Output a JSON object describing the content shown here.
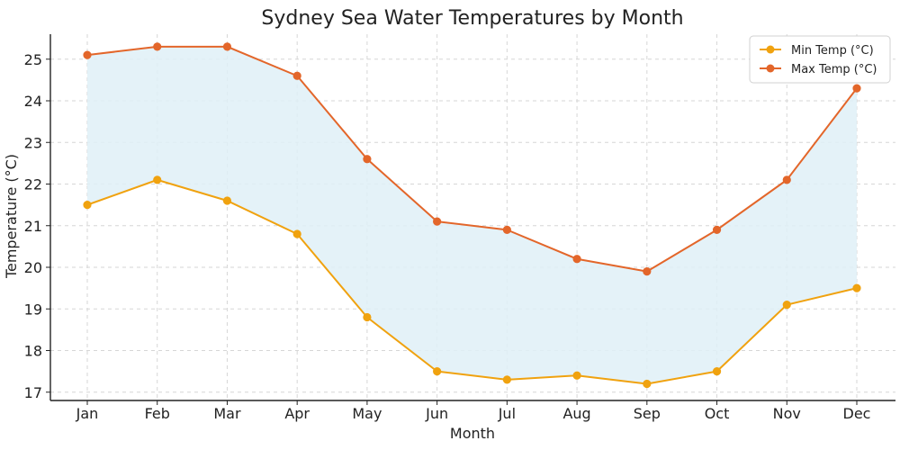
{
  "chart_data": {
    "type": "line",
    "title": "Sydney Sea Water Temperatures by Month",
    "xlabel": "Month",
    "ylabel": "Temperature (°C)",
    "categories": [
      "Jan",
      "Feb",
      "Mar",
      "Apr",
      "May",
      "Jun",
      "Jul",
      "Aug",
      "Sep",
      "Oct",
      "Nov",
      "Dec"
    ],
    "series": [
      {
        "name": "Min Temp (°C)",
        "color": "#f0a20f",
        "values": [
          21.5,
          22.1,
          21.6,
          20.8,
          18.8,
          17.5,
          17.3,
          17.4,
          17.2,
          17.5,
          19.1,
          19.5
        ]
      },
      {
        "name": "Max Temp (°C)",
        "color": "#e3662a",
        "values": [
          25.1,
          25.3,
          25.3,
          24.6,
          22.6,
          21.1,
          20.9,
          20.2,
          19.9,
          20.9,
          22.1,
          24.3
        ]
      }
    ],
    "fill_between": {
      "lower_series": "Min Temp (°C)",
      "upper_series": "Max Temp (°C)",
      "color": "#dff0f7"
    },
    "ylim": [
      16.8,
      25.6
    ],
    "yticks": [
      17,
      18,
      19,
      20,
      21,
      22,
      23,
      24,
      25
    ],
    "grid": true,
    "legend_position": "top-right"
  }
}
